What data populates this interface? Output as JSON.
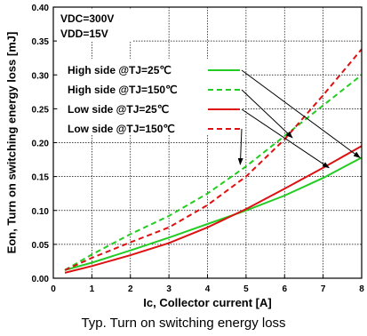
{
  "caption": "Typ. Turn on switching energy loss",
  "conditions": [
    "VDC=300V",
    "VDD=15V"
  ],
  "chart_data": {
    "type": "line",
    "xlabel": "Ic, Collector current [A]",
    "ylabel": "Eon, Turn on switching energy loss [mJ]",
    "xlim": [
      0,
      8
    ],
    "ylim": [
      0,
      0.4
    ],
    "xticks": [
      "0",
      "1",
      "2",
      "3",
      "4",
      "5",
      "6",
      "7",
      "8"
    ],
    "yticks": [
      "0.00",
      "0.05",
      "0.10",
      "0.15",
      "0.20",
      "0.25",
      "0.30",
      "0.35",
      "0.40"
    ],
    "grid": true,
    "legend_position": "top-left",
    "series": [
      {
        "name": "High side @TJ=25℃",
        "color": "#22cc22",
        "dash": false,
        "x": [
          0.3,
          1,
          2,
          3,
          4,
          5,
          6,
          7,
          8
        ],
        "y": [
          0.012,
          0.023,
          0.041,
          0.06,
          0.08,
          0.1,
          0.122,
          0.148,
          0.178
        ]
      },
      {
        "name": "High side @TJ=150℃",
        "color": "#22cc22",
        "dash": true,
        "x": [
          0.3,
          1,
          2,
          3,
          4,
          5,
          6,
          7,
          8
        ],
        "y": [
          0.012,
          0.035,
          0.065,
          0.092,
          0.125,
          0.165,
          0.21,
          0.255,
          0.3
        ]
      },
      {
        "name": "Low side @TJ=25℃",
        "color": "#dd1111",
        "dash": false,
        "x": [
          0.3,
          1,
          2,
          3,
          4,
          5,
          6,
          7,
          8
        ],
        "y": [
          0.008,
          0.018,
          0.034,
          0.052,
          0.075,
          0.102,
          0.132,
          0.163,
          0.195
        ]
      },
      {
        "name": "Low side @TJ=150℃",
        "color": "#dd1111",
        "dash": true,
        "x": [
          0.3,
          1,
          2,
          3,
          4,
          5,
          6,
          7,
          8
        ],
        "y": [
          0.012,
          0.03,
          0.053,
          0.075,
          0.108,
          0.15,
          0.205,
          0.27,
          0.338
        ]
      }
    ]
  }
}
